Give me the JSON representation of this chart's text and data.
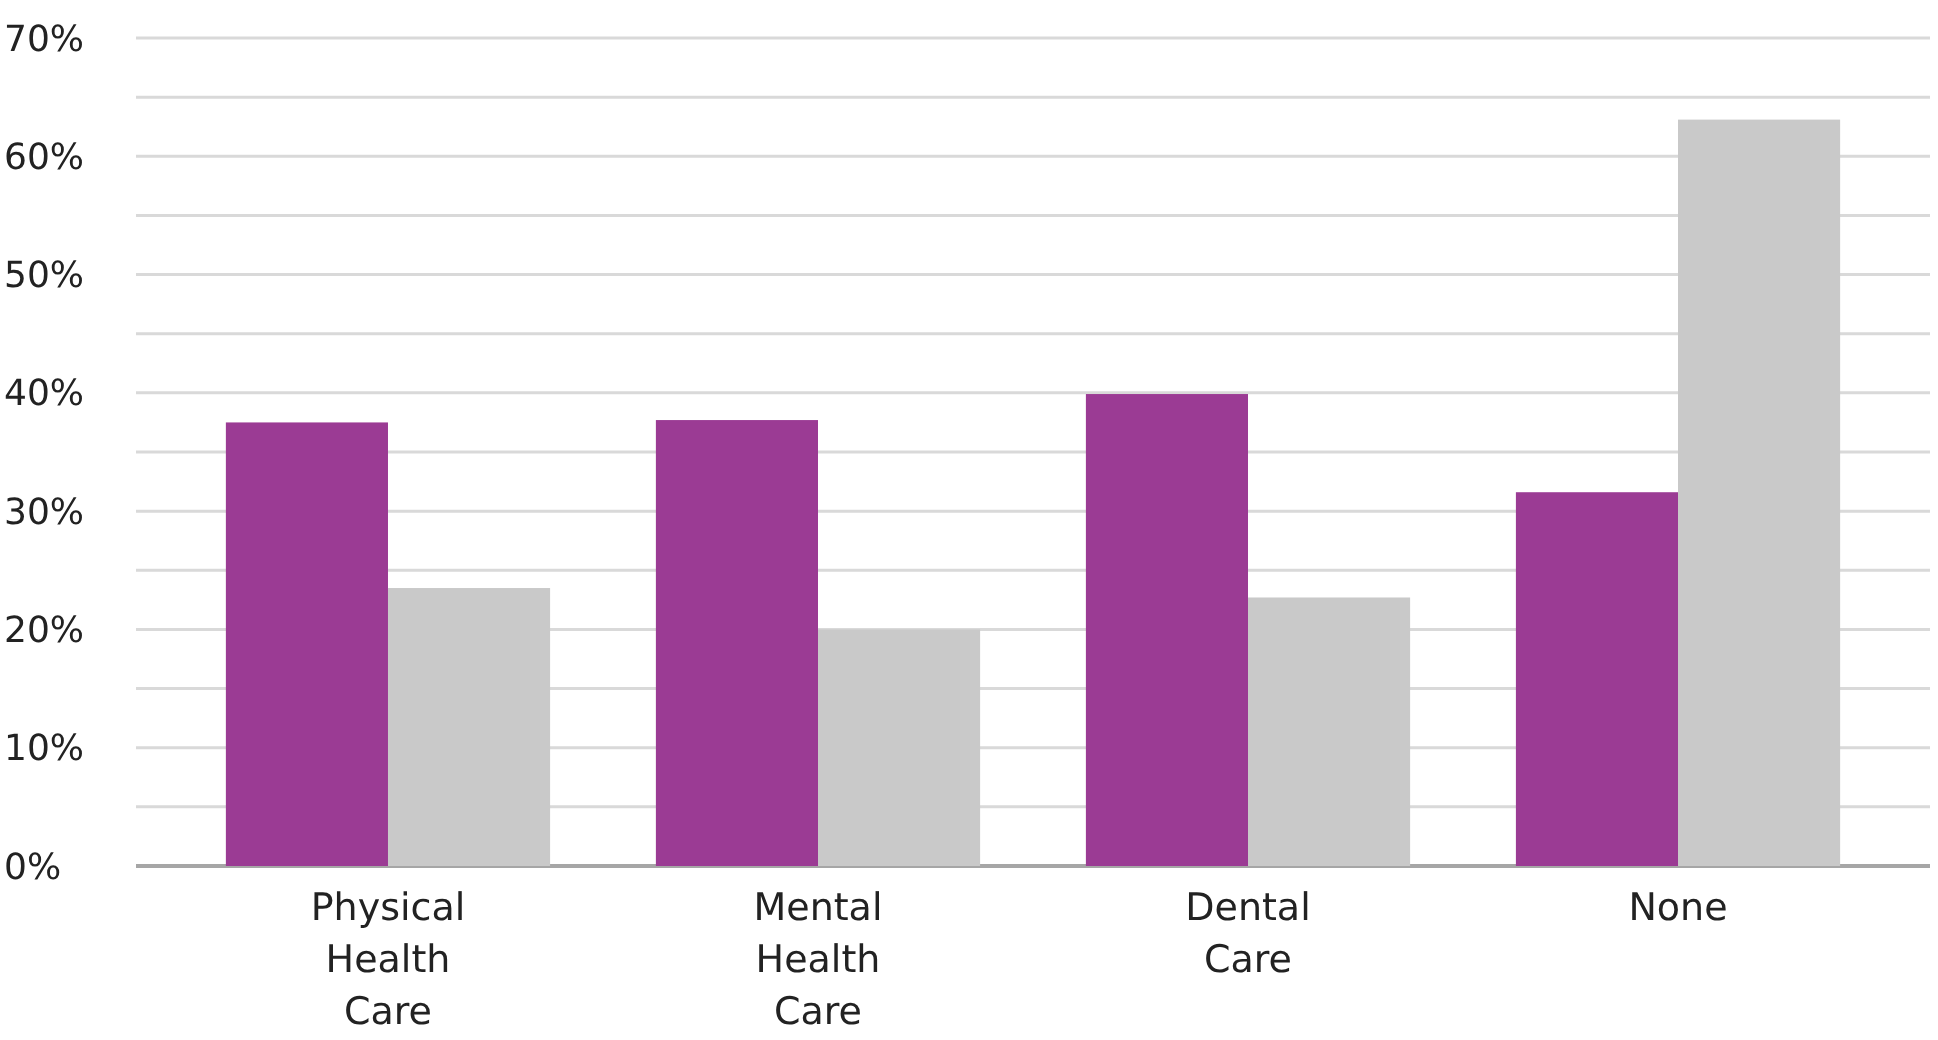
{
  "chart_data": {
    "type": "bar",
    "categories": [
      "Physical Health Care",
      "Mental Health Care",
      "Dental Care",
      "None"
    ],
    "series": [
      {
        "color": "#9b3b94",
        "values": [
          37.5,
          37.7,
          39.9,
          31.6
        ]
      },
      {
        "color": "#c9c9c9",
        "values": [
          23.5,
          20.0,
          22.7,
          63.1
        ]
      }
    ],
    "ylim": [
      0,
      70
    ],
    "yticks": [
      {
        "value": 0,
        "label": "0%"
      },
      {
        "value": 5,
        "label": null
      },
      {
        "value": 10,
        "label": "10%"
      },
      {
        "value": 15,
        "label": null
      },
      {
        "value": 20,
        "label": "20%"
      },
      {
        "value": 25,
        "label": null
      },
      {
        "value": 30,
        "label": "30%"
      },
      {
        "value": 35,
        "label": null
      },
      {
        "value": 40,
        "label": "40%"
      },
      {
        "value": 45,
        "label": null
      },
      {
        "value": 50,
        "label": "50%"
      },
      {
        "value": 55,
        "label": null
      },
      {
        "value": 60,
        "label": "60%"
      },
      {
        "value": 65,
        "label": null
      },
      {
        "value": 70,
        "label": "70%"
      }
    ],
    "grid": "y"
  }
}
